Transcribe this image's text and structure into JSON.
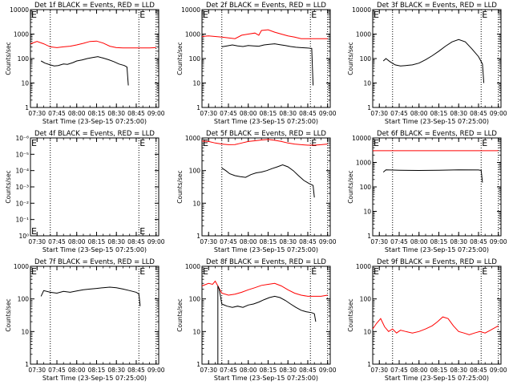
{
  "x_tick_labels": [
    "07:30",
    "07:45",
    "08:00",
    "08:15",
    "08:30",
    "08:45",
    "09:00"
  ],
  "x_label": "Start Time (23-Sep-15 07:25:00)",
  "y_label": "Counts/sec",
  "log_tick_labels": [
    "1",
    "10",
    "100",
    "1000",
    "10000"
  ],
  "empty_tick_labels": [
    "10⁰",
    "10⁻¹",
    "10⁻²",
    "10⁻³",
    "10⁻⁴",
    "10⁻⁵",
    "10⁻⁶"
  ],
  "marker_label": "E",
  "colors": {
    "events": "#000000",
    "lld": "#ff0000"
  },
  "chart_data": [
    {
      "title": "Det 1f BLACK = Events, RED = LLD",
      "type": "line",
      "scale": "log",
      "ylim": [
        1,
        10000
      ],
      "xlim": [
        "07:25",
        "09:02"
      ],
      "markers": [
        "07:25",
        "08:47"
      ],
      "dotted_lines": [
        "07:40",
        "08:47",
        "09:00"
      ],
      "series": [
        {
          "color": "#ff0000",
          "x": [
            "07:25",
            "07:30",
            "07:35",
            "07:40",
            "07:45",
            "07:50",
            "07:55",
            "08:00",
            "08:05",
            "08:10",
            "08:15",
            "08:20",
            "08:25",
            "08:30",
            "08:35",
            "08:40",
            "08:45",
            "08:50",
            "08:55",
            "09:00"
          ],
          "y": [
            400,
            500,
            400,
            300,
            280,
            300,
            320,
            360,
            420,
            500,
            520,
            430,
            320,
            280,
            270,
            270,
            270,
            270,
            270,
            280
          ]
        },
        {
          "color": "#000000",
          "x": [
            "07:33",
            "07:36",
            "07:40",
            "07:43",
            "07:46",
            "07:50",
            "07:53",
            "07:57",
            "08:00",
            "08:04",
            "08:08",
            "08:12",
            "08:16",
            "08:20",
            "08:24",
            "08:28",
            "08:32",
            "08:36",
            "08:38",
            "08:39"
          ],
          "y": [
            80,
            65,
            55,
            50,
            52,
            60,
            58,
            68,
            80,
            88,
            100,
            110,
            120,
            105,
            90,
            75,
            60,
            52,
            45,
            8
          ]
        }
      ]
    },
    {
      "title": "Det 2f BLACK = Events, RED = LLD",
      "type": "line",
      "scale": "log",
      "ylim": [
        1,
        10000
      ],
      "xlim": [
        "07:25",
        "09:02"
      ],
      "markers": [
        "07:25",
        "08:47"
      ],
      "dotted_lines": [
        "07:40",
        "08:47",
        "09:00"
      ],
      "series": [
        {
          "color": "#ff0000",
          "x": [
            "07:25",
            "07:30",
            "07:35",
            "07:40",
            "07:45",
            "07:50",
            "07:55",
            "08:00",
            "08:05",
            "08:08",
            "08:10",
            "08:15",
            "08:20",
            "08:25",
            "08:30",
            "08:35",
            "08:40",
            "08:45",
            "08:50",
            "08:55",
            "09:00"
          ],
          "y": [
            800,
            850,
            800,
            750,
            700,
            650,
            900,
            1000,
            1100,
            900,
            1400,
            1500,
            1200,
            1000,
            850,
            750,
            650,
            650,
            650,
            650,
            650
          ]
        },
        {
          "color": "#000000",
          "x": [
            "07:40",
            "07:44",
            "07:48",
            "07:52",
            "07:56",
            "08:00",
            "08:04",
            "08:08",
            "08:12",
            "08:16",
            "08:20",
            "08:24",
            "08:28",
            "08:32",
            "08:36",
            "08:40",
            "08:44",
            "08:48",
            "08:49"
          ],
          "y": [
            300,
            330,
            360,
            330,
            310,
            340,
            330,
            320,
            360,
            380,
            400,
            370,
            340,
            310,
            290,
            280,
            270,
            260,
            8
          ]
        }
      ]
    },
    {
      "title": "Det 3f BLACK = Events, RED = LLD",
      "type": "line",
      "scale": "log",
      "ylim": [
        1,
        10000
      ],
      "xlim": [
        "07:25",
        "09:02"
      ],
      "markers": [
        "07:25",
        "08:47"
      ],
      "dotted_lines": [
        "07:40",
        "08:47",
        "09:00"
      ],
      "series": [
        {
          "color": "#000000",
          "x": [
            "07:33",
            "07:35",
            "07:38",
            "07:42",
            "07:46",
            "07:50",
            "07:55",
            "08:00",
            "08:05",
            "08:10",
            "08:15",
            "08:20",
            "08:25",
            "08:30",
            "08:35",
            "08:40",
            "08:45",
            "08:48",
            "08:49"
          ],
          "y": [
            80,
            100,
            75,
            55,
            50,
            52,
            55,
            65,
            90,
            130,
            200,
            320,
            480,
            600,
            480,
            250,
            120,
            60,
            10
          ]
        }
      ]
    },
    {
      "title": "Det 4f BLACK = Events, RED = LLD",
      "type": "line",
      "scale": "empty",
      "ylim": [
        1,
        1e-06
      ],
      "xlim": [
        "07:25",
        "09:02"
      ],
      "markers": [
        "07:25",
        "08:47"
      ],
      "dotted_lines": [
        "07:40",
        "08:47",
        "09:00"
      ],
      "series": []
    },
    {
      "title": "Det 5f BLACK = Events, RED = LLD",
      "type": "line",
      "scale": "log",
      "ylim": [
        1,
        1000
      ],
      "xlim": [
        "07:25",
        "09:02"
      ],
      "markers": [
        "07:25",
        "08:47"
      ],
      "dotted_lines": [
        "07:40",
        "08:47",
        "09:00"
      ],
      "series": [
        {
          "color": "#ff0000",
          "x": [
            "07:25",
            "07:30",
            "07:35",
            "07:40",
            "07:45",
            "07:50",
            "07:55",
            "08:00",
            "08:05",
            "08:10",
            "08:15",
            "08:20",
            "08:25",
            "08:30",
            "08:35",
            "08:40",
            "08:45",
            "08:50",
            "08:55",
            "09:00"
          ],
          "y": [
            800,
            780,
            700,
            650,
            620,
            630,
            700,
            780,
            820,
            870,
            900,
            850,
            780,
            700,
            650,
            620,
            600,
            600,
            620,
            650
          ]
        },
        {
          "color": "#000000",
          "x": [
            "07:40",
            "07:43",
            "07:46",
            "07:50",
            "07:54",
            "07:58",
            "08:02",
            "08:06",
            "08:10",
            "08:14",
            "08:18",
            "08:22",
            "08:26",
            "08:30",
            "08:34",
            "08:38",
            "08:42",
            "08:46",
            "08:49",
            "08:50"
          ],
          "y": [
            120,
            100,
            80,
            70,
            65,
            62,
            75,
            85,
            90,
            100,
            115,
            130,
            150,
            130,
            100,
            70,
            50,
            40,
            35,
            15
          ]
        }
      ]
    },
    {
      "title": "Det 6f BLACK = Events, RED = LLD",
      "type": "line",
      "scale": "log",
      "ylim": [
        1,
        10000
      ],
      "xlim": [
        "07:25",
        "09:02"
      ],
      "markers": [
        "07:25",
        "08:47"
      ],
      "dotted_lines": [
        "07:40",
        "08:47",
        "09:00"
      ],
      "series": [
        {
          "color": "#ff0000",
          "x": [
            "07:25",
            "07:40",
            "08:00",
            "08:20",
            "08:40",
            "08:55",
            "09:00"
          ],
          "y": [
            3000,
            3000,
            3000,
            3000,
            3000,
            3000,
            3000
          ]
        },
        {
          "color": "#000000",
          "x": [
            "07:33",
            "07:35",
            "07:45",
            "08:00",
            "08:15",
            "08:30",
            "08:45",
            "08:47",
            "08:48"
          ],
          "y": [
            400,
            500,
            480,
            470,
            480,
            500,
            490,
            470,
            150
          ]
        }
      ]
    },
    {
      "title": "Det 7f BLACK = Events, RED = LLD",
      "type": "line",
      "scale": "log",
      "ylim": [
        1,
        1000
      ],
      "xlim": [
        "07:25",
        "09:02"
      ],
      "markers": [
        "07:25",
        "08:47"
      ],
      "dotted_lines": [
        "07:40",
        "08:47",
        "09:00"
      ],
      "series": [
        {
          "color": "#000000",
          "x": [
            "07:33",
            "07:35",
            "07:40",
            "07:45",
            "07:50",
            "07:55",
            "08:00",
            "08:05",
            "08:10",
            "08:15",
            "08:20",
            "08:25",
            "08:30",
            "08:35",
            "08:40",
            "08:45",
            "08:47",
            "08:48"
          ],
          "y": [
            120,
            180,
            160,
            150,
            170,
            160,
            175,
            190,
            200,
            210,
            220,
            230,
            220,
            200,
            180,
            160,
            140,
            60
          ]
        }
      ]
    },
    {
      "title": "Det 8f BLACK = Events, RED = LLD",
      "type": "line",
      "scale": "log",
      "ylim": [
        1,
        1000
      ],
      "xlim": [
        "07:25",
        "09:02"
      ],
      "markers": [
        "07:25",
        "08:47"
      ],
      "dotted_lines": [
        "07:40",
        "08:47",
        "09:00"
      ],
      "series": [
        {
          "color": "#ff0000",
          "x": [
            "07:25",
            "07:30",
            "07:33",
            "07:35",
            "07:37",
            "07:40",
            "07:45",
            "07:50",
            "07:55",
            "08:00",
            "08:05",
            "08:10",
            "08:15",
            "08:20",
            "08:25",
            "08:30",
            "08:35",
            "08:40",
            "08:45",
            "08:50",
            "08:55",
            "09:00"
          ],
          "y": [
            250,
            300,
            280,
            350,
            250,
            150,
            130,
            140,
            160,
            190,
            220,
            260,
            280,
            300,
            250,
            190,
            150,
            130,
            120,
            120,
            120,
            130
          ]
        },
        {
          "color": "#000000",
          "x": [
            "07:37",
            "07:37",
            "07:38",
            "07:39",
            "07:40",
            "07:44",
            "07:48",
            "07:52",
            "07:56",
            "08:00",
            "08:04",
            "08:08",
            "08:12",
            "08:16",
            "08:20",
            "08:24",
            "08:28",
            "08:32",
            "08:36",
            "08:40",
            "08:44",
            "08:48",
            "08:50",
            "08:51"
          ],
          "y": [
            1,
            250,
            200,
            120,
            70,
            60,
            55,
            60,
            55,
            65,
            70,
            80,
            95,
            110,
            120,
            110,
            90,
            70,
            55,
            45,
            40,
            38,
            35,
            20
          ]
        }
      ]
    },
    {
      "title": "Det 9f BLACK = Events, RED = LLD",
      "type": "line",
      "scale": "log",
      "ylim": [
        1,
        1000
      ],
      "xlim": [
        "07:25",
        "09:02"
      ],
      "markers": [
        "07:25",
        "08:47"
      ],
      "dotted_lines": [
        "07:40",
        "08:47",
        "09:00"
      ],
      "series": [
        {
          "color": "#ff0000",
          "x": [
            "07:25",
            "07:28",
            "07:31",
            "07:34",
            "07:37",
            "07:40",
            "07:43",
            "07:46",
            "07:50",
            "07:55",
            "08:00",
            "08:05",
            "08:10",
            "08:14",
            "08:18",
            "08:22",
            "08:26",
            "08:30",
            "08:34",
            "08:38",
            "08:42",
            "08:46",
            "08:50",
            "08:54",
            "09:00"
          ],
          "y": [
            12,
            18,
            25,
            14,
            10,
            12,
            9,
            11,
            10,
            9,
            10,
            12,
            15,
            20,
            28,
            25,
            15,
            10,
            9,
            8,
            9,
            10,
            9,
            11,
            15
          ]
        }
      ]
    }
  ]
}
